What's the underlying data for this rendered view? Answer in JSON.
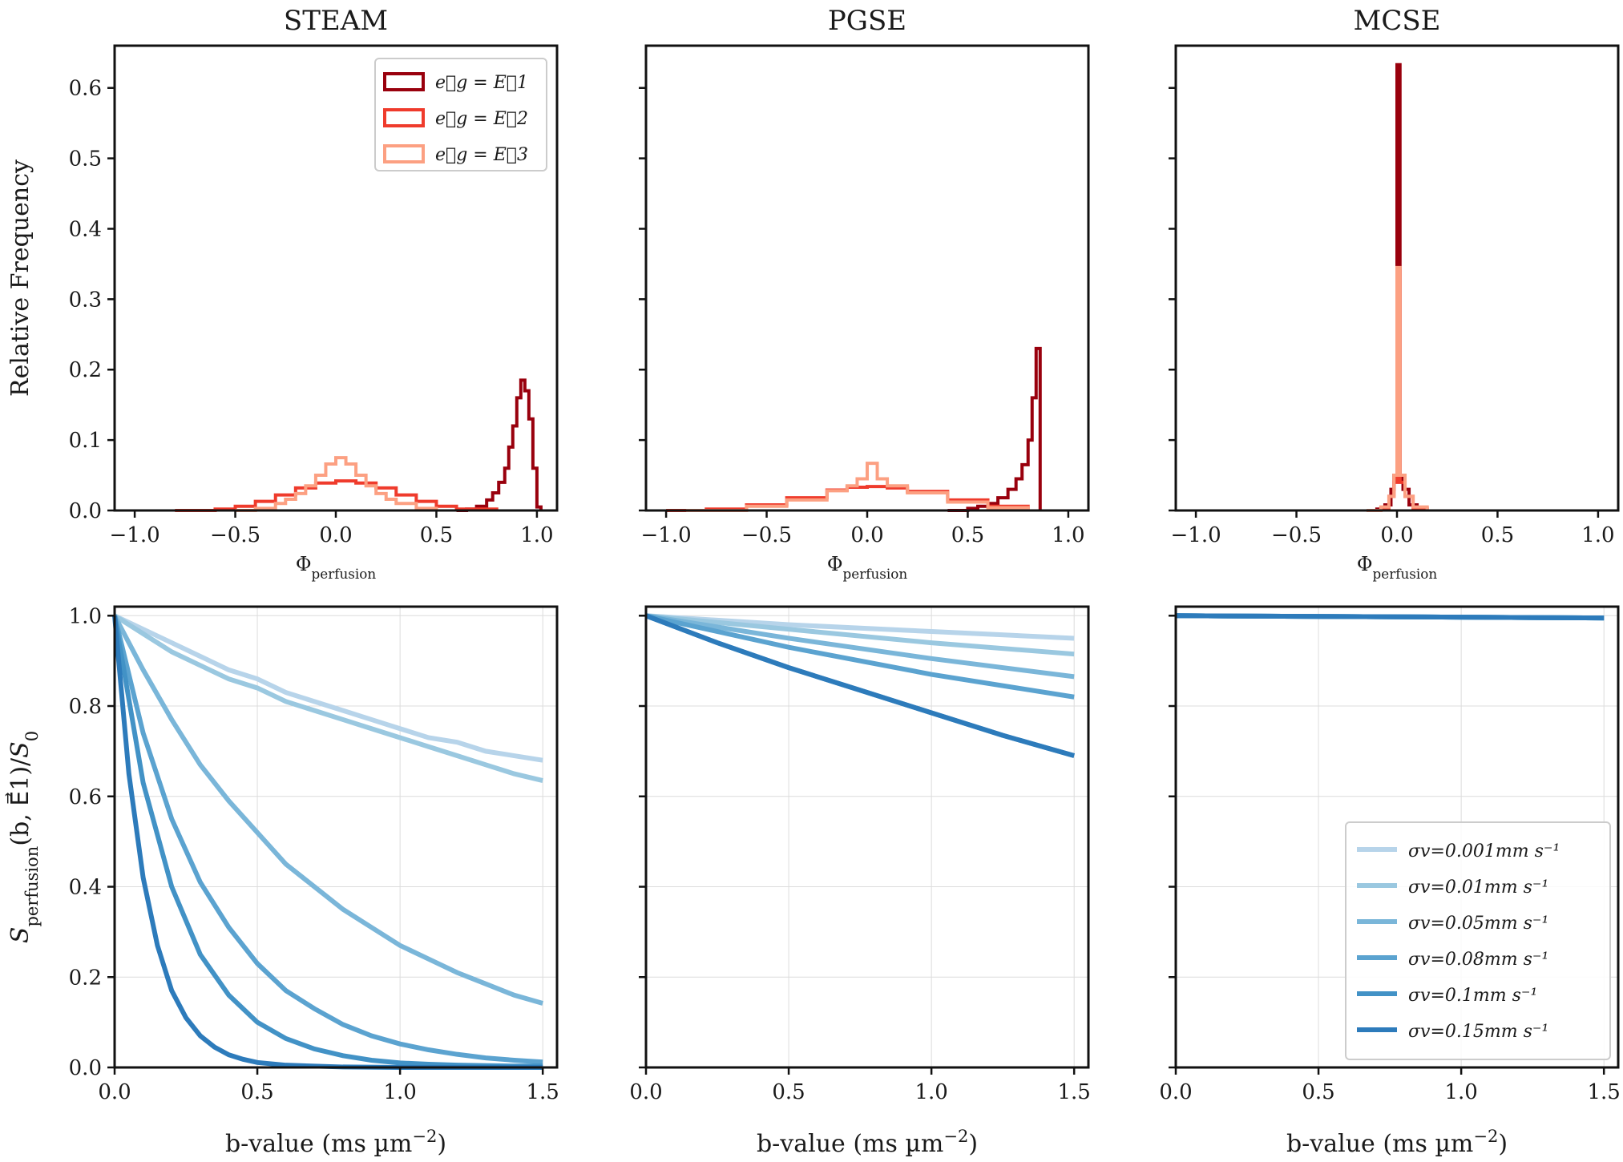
{
  "chart_data": [
    {
      "type": "histogram",
      "panel": "STEAM",
      "title": "STEAM",
      "xlabel": "Φperfusion",
      "ylabel": "Relative Frequency",
      "xlim": [
        -1.1,
        1.1
      ],
      "ylim": [
        0,
        0.66
      ],
      "xticks": [
        -1.0,
        -0.5,
        0.0,
        0.5,
        1.0
      ],
      "yticks": [
        0.0,
        0.1,
        0.2,
        0.3,
        0.4,
        0.5,
        0.6
      ],
      "grid": false,
      "legend_position": "top-right",
      "series": [
        {
          "name": "e⃗g = E⃗1",
          "color": "#99000d",
          "x": [
            0.6,
            0.65,
            0.7,
            0.75,
            0.78,
            0.81,
            0.84,
            0.86,
            0.88,
            0.9,
            0.92,
            0.94,
            0.96,
            0.98,
            1.0,
            1.02
          ],
          "y": [
            0.0,
            0.002,
            0.006,
            0.015,
            0.025,
            0.04,
            0.06,
            0.09,
            0.12,
            0.16,
            0.185,
            0.17,
            0.13,
            0.06,
            0.005,
            0.0
          ]
        },
        {
          "name": "e⃗g = E⃗2",
          "color": "#ef3b2c",
          "x": [
            -0.8,
            -0.6,
            -0.5,
            -0.4,
            -0.3,
            -0.2,
            -0.1,
            0.0,
            0.1,
            0.2,
            0.3,
            0.4,
            0.5,
            0.6,
            0.8
          ],
          "y": [
            0.0,
            0.002,
            0.006,
            0.013,
            0.022,
            0.032,
            0.039,
            0.042,
            0.039,
            0.032,
            0.022,
            0.013,
            0.006,
            0.002,
            0.0
          ]
        },
        {
          "name": "e⃗g = E⃗3",
          "color": "#fca082",
          "x": [
            -0.5,
            -0.4,
            -0.3,
            -0.25,
            -0.2,
            -0.15,
            -0.1,
            -0.05,
            0.0,
            0.05,
            0.1,
            0.15,
            0.2,
            0.25,
            0.3,
            0.4,
            0.5
          ],
          "y": [
            0.0,
            0.003,
            0.01,
            0.016,
            0.024,
            0.035,
            0.05,
            0.066,
            0.075,
            0.066,
            0.05,
            0.035,
            0.024,
            0.016,
            0.01,
            0.003,
            0.0
          ]
        }
      ]
    },
    {
      "type": "histogram",
      "panel": "PGSE",
      "title": "PGSE",
      "xlabel": "Φperfusion",
      "xlim": [
        -1.1,
        1.1
      ],
      "ylim": [
        0,
        0.66
      ],
      "xticks": [
        -1.0,
        -0.5,
        0.0,
        0.5,
        1.0
      ],
      "series": [
        {
          "name": "e⃗g = E⃗1",
          "color": "#99000d",
          "x": [
            0.4,
            0.5,
            0.55,
            0.6,
            0.65,
            0.7,
            0.74,
            0.77,
            0.8,
            0.82,
            0.84,
            0.85,
            0.86
          ],
          "y": [
            0.0,
            0.003,
            0.006,
            0.01,
            0.018,
            0.03,
            0.045,
            0.065,
            0.1,
            0.16,
            0.23,
            0.23,
            0.0
          ]
        },
        {
          "name": "e⃗g = E⃗2",
          "color": "#ef3b2c",
          "x": [
            -1.0,
            -0.8,
            -0.6,
            -0.4,
            -0.2,
            -0.1,
            0.0,
            0.1,
            0.2,
            0.4,
            0.6,
            0.8
          ],
          "y": [
            0.0,
            0.002,
            0.008,
            0.018,
            0.029,
            0.033,
            0.034,
            0.032,
            0.027,
            0.015,
            0.006,
            0.0
          ]
        },
        {
          "name": "e⃗g = E⃗3",
          "color": "#fca082",
          "x": [
            -0.9,
            -0.6,
            -0.4,
            -0.2,
            -0.1,
            -0.05,
            0.0,
            0.05,
            0.1,
            0.2,
            0.4,
            0.6,
            0.8
          ],
          "y": [
            0.0,
            0.006,
            0.015,
            0.028,
            0.035,
            0.045,
            0.067,
            0.045,
            0.035,
            0.025,
            0.012,
            0.004,
            0.0
          ]
        }
      ]
    },
    {
      "type": "histogram",
      "panel": "MCSE",
      "title": "MCSE",
      "xlabel": "Φperfusion",
      "xlim": [
        -1.1,
        1.1
      ],
      "ylim": [
        0,
        0.66
      ],
      "xticks": [
        -1.0,
        -0.5,
        0.0,
        0.5,
        1.0
      ],
      "series": [
        {
          "name": "e⃗g = E⃗1",
          "color": "#99000d",
          "x": [
            -0.15,
            -0.1,
            -0.06,
            -0.03,
            -0.015,
            0.0,
            0.015,
            0.03,
            0.06,
            0.1,
            0.15
          ],
          "y": [
            0.0,
            0.002,
            0.008,
            0.03,
            0.05,
            0.633,
            0.05,
            0.03,
            0.008,
            0.002,
            0.0
          ]
        },
        {
          "name": "e⃗g = E⃗2",
          "color": "#ef3b2c",
          "x": [
            -0.15,
            -0.08,
            -0.04,
            -0.015,
            0.0,
            0.015,
            0.04,
            0.08,
            0.15
          ],
          "y": [
            0.0,
            0.004,
            0.02,
            0.04,
            0.34,
            0.04,
            0.02,
            0.004,
            0.0
          ]
        },
        {
          "name": "e⃗g = E⃗3",
          "color": "#fca082",
          "x": [
            -0.15,
            -0.08,
            -0.04,
            -0.015,
            0.0,
            0.015,
            0.04,
            0.08,
            0.15
          ],
          "y": [
            0.0,
            0.005,
            0.02,
            0.05,
            0.345,
            0.05,
            0.02,
            0.005,
            0.0
          ]
        }
      ]
    },
    {
      "type": "line",
      "panel": "STEAM",
      "xlabel": "b-value (ms µm⁻²)",
      "ylabel": "Sperfusion(b, E⃗1)/S0",
      "xlim": [
        0,
        1.55
      ],
      "ylim": [
        0,
        1.02
      ],
      "xticks": [
        0.0,
        0.5,
        1.0,
        1.5
      ],
      "yticks": [
        0.0,
        0.2,
        0.4,
        0.6,
        0.8,
        1.0
      ],
      "grid": true,
      "series": [
        {
          "name": "σv=0.001mm s⁻¹",
          "color": "#b7d4ea",
          "x": [
            0,
            0.1,
            0.2,
            0.3,
            0.4,
            0.5,
            0.6,
            0.7,
            0.8,
            0.9,
            1.0,
            1.1,
            1.2,
            1.3,
            1.4,
            1.5
          ],
          "y": [
            1.0,
            0.97,
            0.94,
            0.91,
            0.88,
            0.86,
            0.83,
            0.81,
            0.79,
            0.77,
            0.75,
            0.73,
            0.72,
            0.7,
            0.69,
            0.68
          ]
        },
        {
          "name": "σv=0.01mm s⁻¹",
          "color": "#9ac8e0",
          "x": [
            0,
            0.1,
            0.2,
            0.3,
            0.4,
            0.5,
            0.6,
            0.7,
            0.8,
            0.9,
            1.0,
            1.1,
            1.2,
            1.3,
            1.4,
            1.5
          ],
          "y": [
            1.0,
            0.96,
            0.92,
            0.89,
            0.86,
            0.84,
            0.81,
            0.79,
            0.77,
            0.75,
            0.73,
            0.71,
            0.69,
            0.67,
            0.65,
            0.635
          ]
        },
        {
          "name": "σv=0.05mm s⁻¹",
          "color": "#7ab6d9",
          "x": [
            0,
            0.1,
            0.2,
            0.3,
            0.4,
            0.5,
            0.6,
            0.7,
            0.8,
            0.9,
            1.0,
            1.1,
            1.2,
            1.3,
            1.4,
            1.5
          ],
          "y": [
            1.0,
            0.88,
            0.77,
            0.67,
            0.59,
            0.52,
            0.45,
            0.4,
            0.35,
            0.31,
            0.27,
            0.24,
            0.21,
            0.185,
            0.16,
            0.142
          ]
        },
        {
          "name": "σv=0.08mm s⁻¹",
          "color": "#5ba3d0",
          "x": [
            0,
            0.1,
            0.2,
            0.3,
            0.4,
            0.5,
            0.6,
            0.7,
            0.8,
            0.9,
            1.0,
            1.1,
            1.2,
            1.3,
            1.4,
            1.5
          ],
          "y": [
            1.0,
            0.74,
            0.55,
            0.41,
            0.31,
            0.23,
            0.17,
            0.13,
            0.095,
            0.07,
            0.052,
            0.039,
            0.029,
            0.021,
            0.016,
            0.012
          ]
        },
        {
          "name": "σv=0.1mm s⁻¹",
          "color": "#4292c6",
          "x": [
            0,
            0.1,
            0.2,
            0.3,
            0.4,
            0.5,
            0.6,
            0.7,
            0.8,
            0.9,
            1.0,
            1.1,
            1.2,
            1.3,
            1.4,
            1.5
          ],
          "y": [
            1.0,
            0.63,
            0.4,
            0.25,
            0.16,
            0.1,
            0.064,
            0.041,
            0.026,
            0.016,
            0.01,
            0.007,
            0.005,
            0.004,
            0.003,
            0.003
          ]
        },
        {
          "name": "σv=0.15mm s⁻¹",
          "color": "#2d7bbb",
          "x": [
            0,
            0.05,
            0.1,
            0.15,
            0.2,
            0.25,
            0.3,
            0.35,
            0.4,
            0.45,
            0.5,
            0.6,
            0.8,
            1.0,
            1.2,
            1.5
          ],
          "y": [
            1.0,
            0.65,
            0.42,
            0.27,
            0.17,
            0.11,
            0.07,
            0.045,
            0.028,
            0.018,
            0.011,
            0.005,
            0.001,
            0.0,
            0.0,
            0.0
          ]
        }
      ]
    },
    {
      "type": "line",
      "panel": "PGSE",
      "xlabel": "b-value (ms µm⁻²)",
      "xlim": [
        0,
        1.55
      ],
      "ylim": [
        0,
        1.02
      ],
      "xticks": [
        0.0,
        0.5,
        1.0,
        1.5
      ],
      "grid": true,
      "series": [
        {
          "name": "σv=0.001mm s⁻¹",
          "color": "#b7d4ea",
          "x": [
            0,
            0.5,
            1.0,
            1.5
          ],
          "y": [
            1.0,
            0.98,
            0.965,
            0.95
          ]
        },
        {
          "name": "σv=0.01mm s⁻¹",
          "color": "#9ac8e0",
          "x": [
            0,
            0.5,
            1.0,
            1.5
          ],
          "y": [
            1.0,
            0.97,
            0.94,
            0.915
          ]
        },
        {
          "name": "σv=0.05mm s⁻¹",
          "color": "#7ab6d9",
          "x": [
            0,
            0.5,
            1.0,
            1.5
          ],
          "y": [
            1.0,
            0.95,
            0.905,
            0.865
          ]
        },
        {
          "name": "σv=0.08mm s⁻¹",
          "color": "#5ba3d0",
          "x": [
            0,
            0.5,
            1.0,
            1.5
          ],
          "y": [
            1.0,
            0.93,
            0.87,
            0.82
          ]
        },
        {
          "name": "σv=0.1mm s⁻¹",
          "color": "#4292c6",
          "x": [
            0,
            0.25,
            0.5,
            0.75,
            1.0,
            1.25,
            1.5
          ],
          "y": [
            1.0,
            0.94,
            0.885,
            0.835,
            0.785,
            0.735,
            0.69
          ]
        },
        {
          "name": "σv=0.15mm s⁻¹",
          "color": "#2d7bbb",
          "x": [
            0,
            0.25,
            0.5,
            0.75,
            1.0,
            1.25,
            1.5
          ],
          "y": [
            1.0,
            0.94,
            0.885,
            0.835,
            0.785,
            0.735,
            0.69
          ]
        }
      ]
    },
    {
      "type": "line",
      "panel": "MCSE",
      "xlabel": "b-value (ms µm⁻²)",
      "xlim": [
        0,
        1.55
      ],
      "ylim": [
        0,
        1.02
      ],
      "xticks": [
        0.0,
        0.5,
        1.0,
        1.5
      ],
      "grid": true,
      "legend_position": "bottom-right",
      "series": [
        {
          "name": "σv=0.001mm s⁻¹",
          "color": "#b7d4ea",
          "x": [
            0,
            1.5
          ],
          "y": [
            1.0,
            0.995
          ]
        },
        {
          "name": "σv=0.01mm s⁻¹",
          "color": "#9ac8e0",
          "x": [
            0,
            1.5
          ],
          "y": [
            1.0,
            0.995
          ]
        },
        {
          "name": "σv=0.05mm s⁻¹",
          "color": "#7ab6d9",
          "x": [
            0,
            1.5
          ],
          "y": [
            1.0,
            0.995
          ]
        },
        {
          "name": "σv=0.08mm s⁻¹",
          "color": "#5ba3d0",
          "x": [
            0,
            1.5
          ],
          "y": [
            1.0,
            0.995
          ]
        },
        {
          "name": "σv=0.1mm s⁻¹",
          "color": "#4292c6",
          "x": [
            0,
            1.5
          ],
          "y": [
            1.0,
            0.995
          ]
        },
        {
          "name": "σv=0.15mm s⁻¹",
          "color": "#2d7bbb",
          "x": [
            0,
            1.5
          ],
          "y": [
            1.0,
            0.995
          ]
        }
      ]
    }
  ]
}
